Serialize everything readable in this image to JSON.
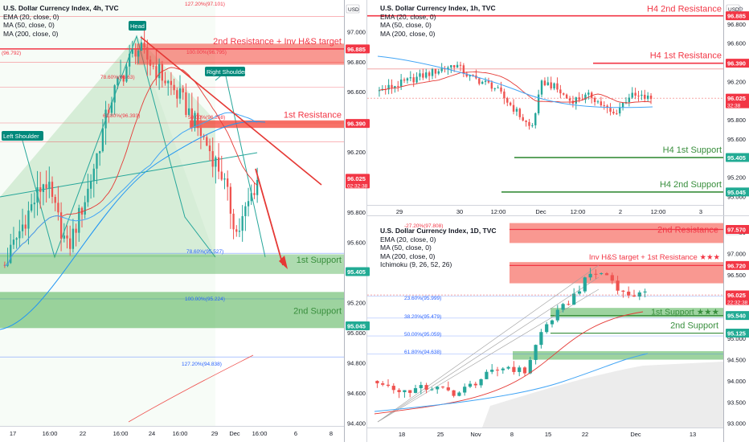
{
  "panels": {
    "left": {
      "title": "U.S. Dollar Currency Index, 4h, TVC",
      "indicators": [
        "EMA (20, close, 0)",
        "MA (50, close, 0)",
        "MA (200, close, 0)"
      ]
    },
    "top_right": {
      "title": "U.S. Dollar Currency Index, 1h, TVC",
      "indicators": [
        "EMA (20, close, 0)",
        "MA (50, close, 0)",
        "MA (200, close, 0)"
      ]
    },
    "bottom_right": {
      "title": "U.S. Dollar Currency Index, 1D, TVC",
      "indicators": [
        "EMA (20, close, 0)",
        "MA (50, close, 0)",
        "MA (200, close, 0)",
        "Ichimoku (9, 26, 52, 26)"
      ]
    }
  },
  "chart_data": [
    {
      "id": "left",
      "type": "candlestick",
      "title": "U.S. Dollar Currency Index, 4h, TVC",
      "currency": "USD",
      "ylim": [
        94.38,
        97.21
      ],
      "y_ticks": [
        "97.000",
        "96.800",
        "96.600",
        "96.400",
        "96.200",
        "96.000",
        "95.800",
        "95.600",
        "95.400",
        "95.200",
        "95.000",
        "94.800",
        "94.600",
        "94.400"
      ],
      "x_ticks": [
        "17",
        "16:00",
        "22",
        "16:00",
        "24",
        "16:00",
        "29",
        "Dec",
        "16:00",
        "6",
        "8"
      ],
      "price_badges": [
        {
          "text": "96.885",
          "value": 96.885,
          "color": "#f23645"
        },
        {
          "text": "96.390",
          "value": 96.39,
          "color": "#f23645"
        },
        {
          "text": "96.025",
          "sub": "02:32:38",
          "value": 96.025,
          "color": "#f23645"
        },
        {
          "text": "95.405",
          "value": 95.405,
          "color": "#22ab94"
        },
        {
          "text": "95.045",
          "value": 95.045,
          "color": "#22ab94"
        }
      ],
      "zones": [
        {
          "label": "2nd Resistance + Inv H&S target",
          "value": 96.885,
          "kind": "resistance"
        },
        {
          "label": "1st Resistance",
          "value": 96.39,
          "kind": "resistance"
        },
        {
          "label": "1st Support",
          "value": 95.405,
          "kind": "support"
        },
        {
          "label": "2nd Support",
          "value": 95.045,
          "kind": "support"
        }
      ],
      "pattern_labels": [
        "Left Shoulder",
        "Head",
        "Right Shoulder"
      ],
      "fib_labels": [
        "127.20%(97.101)",
        "(96.792)",
        "100.00%(96.795)",
        "78.60%(96.63)",
        "61.80%(96.393)",
        "50.00%(96.268)",
        "78.60%(95.527)",
        "100.00%(95.224)",
        "127.20%(94.838)"
      ]
    },
    {
      "id": "top_right",
      "type": "candlestick",
      "title": "U.S. Dollar Currency Index, 1h, TVC",
      "currency": "USD",
      "ylim": [
        94.91,
        97.05
      ],
      "y_ticks": [
        "97.000",
        "96.800",
        "96.600",
        "96.400",
        "96.200",
        "96.000",
        "95.800",
        "95.600",
        "95.400",
        "95.200",
        "95.000"
      ],
      "x_ticks": [
        "29",
        "30",
        "12:00",
        "Dec",
        "12:00",
        "2",
        "12:00",
        "3"
      ],
      "price_badges": [
        {
          "text": "96.885",
          "value": 96.885,
          "color": "#f23645"
        },
        {
          "text": "96.390",
          "value": 96.39,
          "color": "#f23645"
        },
        {
          "text": "96.025",
          "sub": "32:38",
          "value": 96.025,
          "color": "#f23645"
        },
        {
          "text": "95.405",
          "value": 95.405,
          "color": "#22ab94"
        },
        {
          "text": "95.045",
          "value": 95.045,
          "color": "#22ab94"
        }
      ],
      "zones": [
        {
          "label": "H4 2nd Resistance",
          "value": 96.885,
          "kind": "resistance"
        },
        {
          "label": "H4 1st Resistance",
          "value": 96.39,
          "kind": "resistance"
        },
        {
          "label": "H4 1st Support",
          "value": 95.405,
          "kind": "support"
        },
        {
          "label": "H4 2nd Support",
          "value": 95.045,
          "kind": "support"
        }
      ]
    },
    {
      "id": "bottom_right",
      "type": "candlestick",
      "title": "U.S. Dollar Currency Index, 1D, TVC",
      "currency": "USD",
      "ylim": [
        92.9,
        97.75
      ],
      "y_ticks": [
        "97.500",
        "97.000",
        "96.500",
        "96.000",
        "95.500",
        "95.000",
        "94.500",
        "94.000",
        "93.500",
        "93.000"
      ],
      "x_ticks": [
        "18",
        "25",
        "Nov",
        "8",
        "15",
        "22",
        "Dec",
        "13"
      ],
      "price_badges": [
        {
          "text": "97.570",
          "value": 97.57,
          "color": "#f23645"
        },
        {
          "text": "96.720",
          "value": 96.72,
          "color": "#f23645"
        },
        {
          "text": "96.025",
          "sub": "22:32:38",
          "value": 96.025,
          "color": "#f23645"
        },
        {
          "text": "95.540",
          "value": 95.54,
          "color": "#22ab94"
        },
        {
          "text": "95.125",
          "value": 95.125,
          "color": "#22ab94"
        }
      ],
      "zones": [
        {
          "label": "2nd Resistance",
          "value": 97.57,
          "kind": "resistance"
        },
        {
          "label": "Inv H&S target + 1st Resistance ★★★",
          "value": 96.72,
          "kind": "resistance"
        },
        {
          "label": "1st Support ★★★",
          "value": 95.54,
          "kind": "support"
        },
        {
          "label": "2nd Support",
          "value": 95.125,
          "kind": "support"
        }
      ],
      "fib_labels": [
        "-27.20%(97.808)",
        "23.60%(95.999)",
        "38.20%(95.479)",
        "50.00%(95.059)",
        "61.80%(94.638)"
      ]
    }
  ],
  "colors": {
    "bull": "#26a69a",
    "bear": "#ef5350",
    "resistance": "#f23645",
    "support": "#4caf50",
    "trend": "#e53935",
    "ma50": "#42a5f5"
  }
}
